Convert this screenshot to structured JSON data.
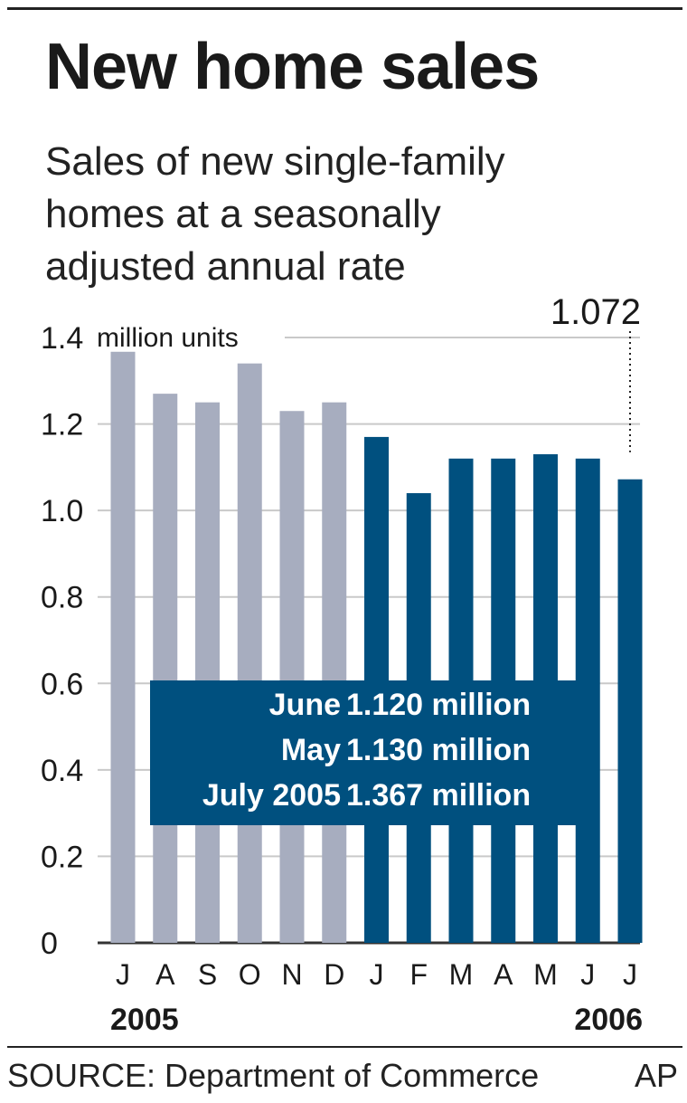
{
  "header": {
    "title": "New home sales",
    "subtitle_lines": [
      "Sales of new single-family",
      "homes at a seasonally",
      "adjusted annual rate"
    ]
  },
  "chart_data": {
    "type": "bar",
    "title": "New home sales",
    "ylabel": "million units",
    "ylim": [
      0,
      1.4
    ],
    "y_ticks": [
      "0",
      "0.2",
      "0.4",
      "0.6",
      "0.8",
      "1.0",
      "1.2",
      "1.4"
    ],
    "grid": true,
    "categories": [
      "J",
      "A",
      "S",
      "O",
      "N",
      "D",
      "J",
      "F",
      "M",
      "A",
      "M",
      "J",
      "J"
    ],
    "values": [
      1.367,
      1.27,
      1.25,
      1.34,
      1.23,
      1.25,
      1.17,
      1.04,
      1.12,
      1.12,
      1.13,
      1.12,
      1.072
    ],
    "year_labels": [
      {
        "text": "2005",
        "category_index": 0
      },
      {
        "text": "2006",
        "category_index": 12
      }
    ],
    "bar_colors": {
      "2005": "#a7adbf",
      "2006": "#00507f"
    },
    "callout": {
      "text": "1.072",
      "category_index": 12
    },
    "annotation_box": {
      "color": "#00507f",
      "rows": [
        {
          "label": "June",
          "value": "1.120 million"
        },
        {
          "label": "May",
          "value": "1.130 million"
        },
        {
          "label": "July  2005",
          "value": "1.367 million"
        }
      ]
    }
  },
  "footer": {
    "source": "SOURCE: Department of Commerce",
    "credit": "AP"
  }
}
